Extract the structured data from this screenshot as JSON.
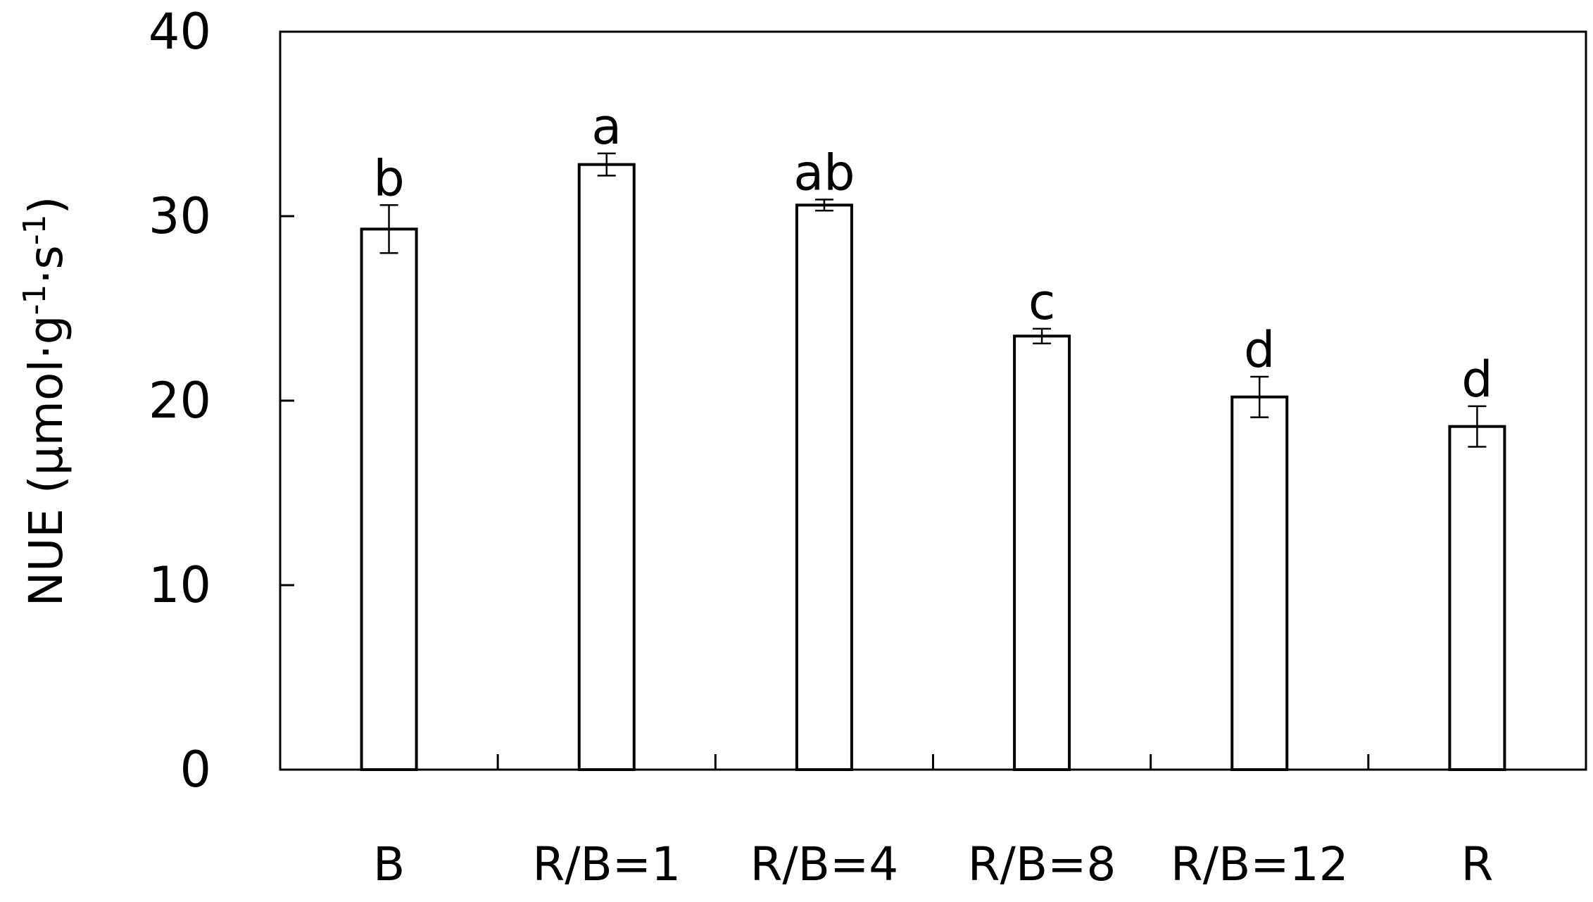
{
  "chart_data": {
    "type": "bar",
    "categories": [
      "B",
      "R/B=1",
      "R/B=4",
      "R/B=8",
      "R/B=12",
      "R"
    ],
    "values": [
      29.3,
      32.8,
      30.6,
      23.5,
      20.2,
      18.6
    ],
    "errors": [
      1.3,
      0.6,
      0.3,
      0.4,
      1.1,
      1.1
    ],
    "significance": [
      "b",
      "a",
      "ab",
      "c",
      "d",
      "d"
    ],
    "ylabel_main": "NUE (μmol·g",
    "ylabel_sup1": "-1",
    "ylabel_mid": "·s",
    "ylabel_sup2": "-1",
    "ylabel_end": ")",
    "ylim": [
      0,
      40
    ],
    "yticks": [
      "0",
      "10",
      "20",
      "30",
      "40"
    ],
    "grid": false,
    "legend": "none",
    "bar_fill": "#ffffff",
    "bar_stroke": "#000000"
  }
}
